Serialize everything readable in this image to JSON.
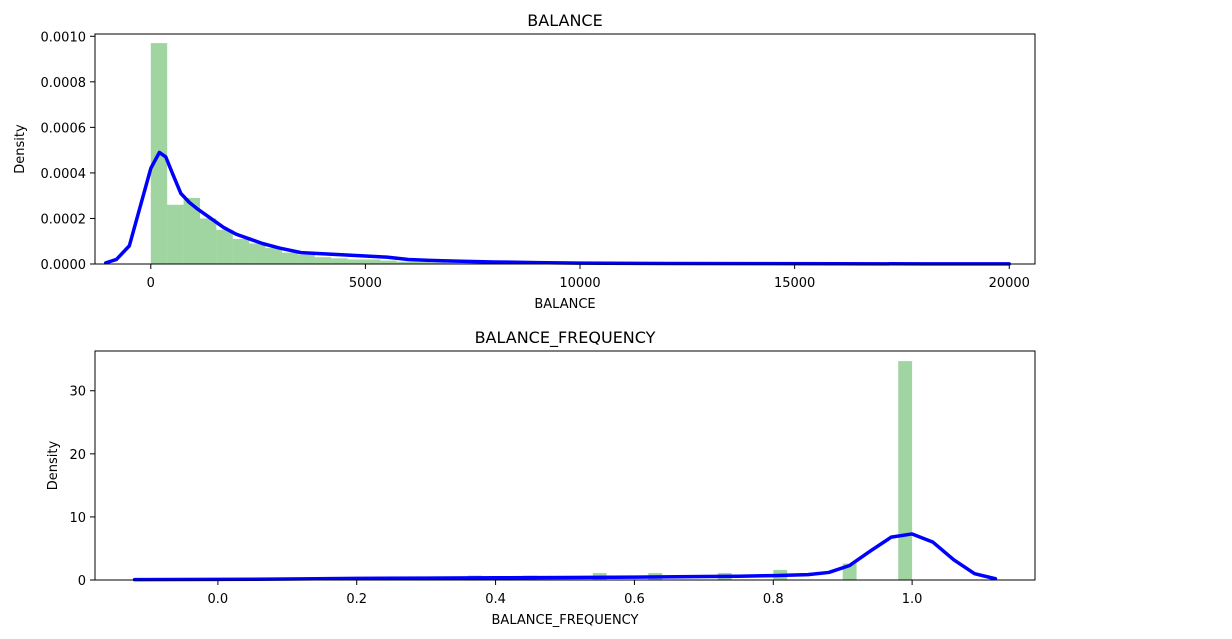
{
  "chart_data": [
    {
      "type": "histogram-kde",
      "title": "BALANCE",
      "xlabel": "BALANCE",
      "ylabel": "Density",
      "xlim": [
        -1300,
        20600
      ],
      "ylim": [
        0,
        0.00101
      ],
      "xticks": [
        0,
        5000,
        10000,
        15000,
        20000
      ],
      "xtick_labels": [
        "0",
        "5000",
        "10000",
        "15000",
        "20000"
      ],
      "yticks": [
        0,
        0.0002,
        0.0004,
        0.0006,
        0.0008,
        0.001
      ],
      "ytick_labels": [
        "0.0000",
        "0.0002",
        "0.0004",
        "0.0006",
        "0.0008",
        "0.0010"
      ],
      "bin_width": 382,
      "bins": [
        {
          "x0": 0,
          "x1": 382,
          "density": 0.00097
        },
        {
          "x0": 382,
          "x1": 764,
          "density": 0.00026
        },
        {
          "x0": 764,
          "x1": 1146,
          "density": 0.00029
        },
        {
          "x0": 1146,
          "x1": 1528,
          "density": 0.0002
        },
        {
          "x0": 1528,
          "x1": 1910,
          "density": 0.00015
        },
        {
          "x0": 1910,
          "x1": 2292,
          "density": 0.00011
        },
        {
          "x0": 2292,
          "x1": 2674,
          "density": 9e-05
        },
        {
          "x0": 2674,
          "x1": 3056,
          "density": 7e-05
        },
        {
          "x0": 3056,
          "x1": 3438,
          "density": 5e-05
        },
        {
          "x0": 3438,
          "x1": 3820,
          "density": 4e-05
        },
        {
          "x0": 3820,
          "x1": 4202,
          "density": 3e-05
        },
        {
          "x0": 4202,
          "x1": 4584,
          "density": 2.5e-05
        },
        {
          "x0": 4584,
          "x1": 4966,
          "density": 2e-05
        },
        {
          "x0": 4966,
          "x1": 5348,
          "density": 2e-05
        },
        {
          "x0": 5348,
          "x1": 5730,
          "density": 1.5e-05
        },
        {
          "x0": 5730,
          "x1": 6112,
          "density": 1e-05
        },
        {
          "x0": 6112,
          "x1": 6494,
          "density": 1e-05
        },
        {
          "x0": 6494,
          "x1": 6876,
          "density": 7e-06
        },
        {
          "x0": 6876,
          "x1": 7258,
          "density": 6e-06
        },
        {
          "x0": 7258,
          "x1": 7640,
          "density": 5e-06
        },
        {
          "x0": 7640,
          "x1": 8022,
          "density": 4e-06
        },
        {
          "x0": 8022,
          "x1": 8404,
          "density": 3e-06
        },
        {
          "x0": 8404,
          "x1": 8786,
          "density": 3e-06
        },
        {
          "x0": 8786,
          "x1": 9168,
          "density": 2e-06
        },
        {
          "x0": 9168,
          "x1": 9550,
          "density": 2e-06
        },
        {
          "x0": 9550,
          "x1": 9932,
          "density": 1e-06
        },
        {
          "x0": 9932,
          "x1": 10314,
          "density": 1e-06
        }
      ],
      "kde": {
        "x": [
          -1050,
          -800,
          -500,
          -250,
          0,
          200,
          350,
          500,
          700,
          900,
          1100,
          1400,
          1700,
          2000,
          2300,
          2600,
          3000,
          3500,
          4000,
          4500,
          5000,
          5500,
          6000,
          6500,
          7000,
          8000,
          9000,
          10000,
          12000,
          14000,
          16000,
          18000,
          20000
        ],
        "y": [
          5e-06,
          2e-05,
          8e-05,
          0.00025,
          0.00042,
          0.00049,
          0.00047,
          0.0004,
          0.00031,
          0.00027,
          0.00024,
          0.0002,
          0.00016,
          0.00013,
          0.00011,
          9e-05,
          7e-05,
          5e-05,
          4.5e-05,
          4e-05,
          3.5e-05,
          3e-05,
          2e-05,
          1.6e-05,
          1.3e-05,
          9e-06,
          6e-06,
          4e-06,
          2e-06,
          1.5e-06,
          1e-06,
          7e-07,
          5e-07
        ]
      },
      "bar_color": "#2ca02c",
      "line_color": "#0000ff",
      "grid": false
    },
    {
      "type": "histogram-kde",
      "title": "BALANCE_FREQUENCY",
      "xlabel": "BALANCE_FREQUENCY",
      "ylabel": "Density",
      "xlim": [
        -0.177,
        1.177
      ],
      "ylim": [
        0,
        36.3
      ],
      "xticks": [
        0.0,
        0.2,
        0.4,
        0.6,
        0.8,
        1.0
      ],
      "xtick_labels": [
        "0.0",
        "0.2",
        "0.4",
        "0.6",
        "0.8",
        "1.0"
      ],
      "yticks": [
        0,
        10,
        20,
        30
      ],
      "ytick_labels": [
        "0",
        "10",
        "20",
        "30"
      ],
      "bin_width": 0.02,
      "bins": [
        {
          "x0": 0.18,
          "x1": 0.2,
          "density": 0.2
        },
        {
          "x0": 0.26,
          "x1": 0.28,
          "density": 0.3
        },
        {
          "x0": 0.36,
          "x1": 0.38,
          "density": 0.7
        },
        {
          "x0": 0.44,
          "x1": 0.46,
          "density": 0.7
        },
        {
          "x0": 0.54,
          "x1": 0.56,
          "density": 1.1
        },
        {
          "x0": 0.62,
          "x1": 0.64,
          "density": 1.1
        },
        {
          "x0": 0.72,
          "x1": 0.74,
          "density": 1.1
        },
        {
          "x0": 0.8,
          "x1": 0.82,
          "density": 1.6
        },
        {
          "x0": 0.9,
          "x1": 0.92,
          "density": 2.6
        },
        {
          "x0": 0.98,
          "x1": 1.0,
          "density": 34.7
        }
      ],
      "kde": {
        "x": [
          -0.12,
          0.0,
          0.1,
          0.2,
          0.3,
          0.4,
          0.5,
          0.6,
          0.7,
          0.75,
          0.8,
          0.85,
          0.88,
          0.91,
          0.94,
          0.97,
          1.0,
          1.03,
          1.06,
          1.09,
          1.12
        ],
        "y": [
          0.05,
          0.1,
          0.15,
          0.25,
          0.3,
          0.35,
          0.4,
          0.45,
          0.55,
          0.6,
          0.7,
          0.85,
          1.2,
          2.3,
          4.6,
          6.8,
          7.3,
          6.0,
          3.2,
          1.0,
          0.2
        ]
      },
      "bar_color": "#2ca02c",
      "line_color": "#0000ff",
      "grid": false
    }
  ]
}
